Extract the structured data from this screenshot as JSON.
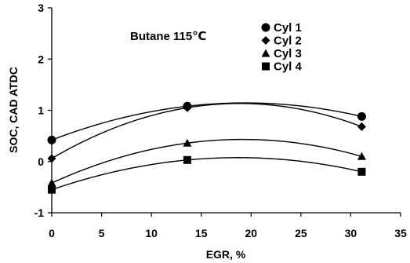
{
  "chart_data": {
    "type": "scatter",
    "xlabel": "EGR, %",
    "ylabel": "SOC, CAD ATDC",
    "xlim": [
      0,
      35
    ],
    "ylim": [
      -1,
      3
    ],
    "x_ticks": [
      0,
      5,
      10,
      15,
      20,
      25,
      30,
      35
    ],
    "y_ticks": [
      -1,
      0,
      1,
      2,
      3
    ],
    "x_tick_labels": [
      "0",
      "5",
      "10",
      "15",
      "20",
      "25",
      "30",
      "35"
    ],
    "y_tick_labels": [
      "-1",
      "0",
      "1",
      "2",
      "3"
    ],
    "grid": false,
    "legend_position": "top-right",
    "annotation": "Butane 115℃",
    "trendline": "quadratic",
    "series": [
      {
        "name": "Cyl 1",
        "marker": "circle",
        "x": [
          0,
          13.6,
          31.1
        ],
        "y": [
          0.42,
          1.08,
          0.88
        ]
      },
      {
        "name": "Cyl 2",
        "marker": "diamond",
        "x": [
          0,
          13.6,
          31.1
        ],
        "y": [
          0.06,
          1.05,
          0.68
        ]
      },
      {
        "name": "Cyl 3",
        "marker": "triangle",
        "x": [
          0,
          13.6,
          31.1
        ],
        "y": [
          -0.42,
          0.36,
          0.1
        ]
      },
      {
        "name": "Cyl 4",
        "marker": "square",
        "x": [
          0,
          13.6,
          31.1
        ],
        "y": [
          -0.55,
          0.03,
          -0.2
        ]
      }
    ]
  }
}
